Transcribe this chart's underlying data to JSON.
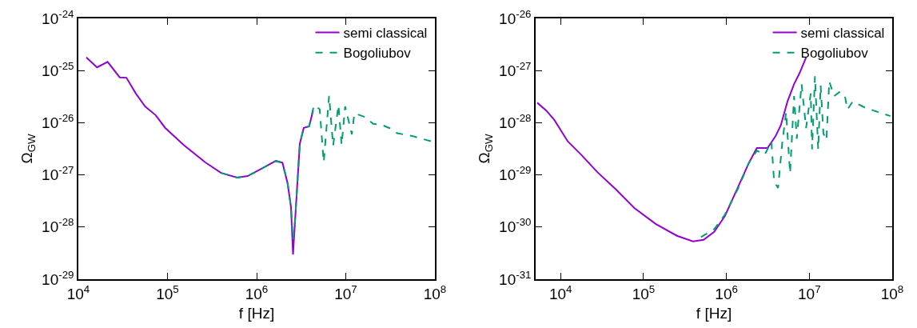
{
  "chart_data": [
    {
      "type": "line",
      "xlabel": "f [Hz]",
      "ylabel": "Ω$_{GW}$",
      "log": "xy",
      "legend": "top right",
      "marker": "none",
      "xlim": [
        10000,
        100000000
      ],
      "ylim": [
        1e-29,
        1e-24
      ],
      "xticks": [
        {
          "value": 10000,
          "label": "10$^{4}$"
        },
        {
          "value": 100000,
          "label": "10$^{5}$"
        },
        {
          "value": 1000000,
          "label": "10$^{6}$"
        },
        {
          "value": 10000000,
          "label": "10$^{7}$"
        },
        {
          "value": 100000000,
          "label": "10$^{8}$"
        }
      ],
      "yticks": [
        {
          "value": 1e-29,
          "label": "10$^{-29}$"
        },
        {
          "value": 1e-28,
          "label": "10$^{-28}$"
        },
        {
          "value": 1e-27,
          "label": "10$^{-27}$"
        },
        {
          "value": 1e-26,
          "label": "10$^{-26}$"
        },
        {
          "value": 1e-25,
          "label": "10$^{-25}$"
        },
        {
          "value": 1e-24,
          "label": "10$^{-24}$"
        }
      ],
      "series": [
        {
          "name": "semi classical",
          "color": "#9400d3",
          "line_style": "solid",
          "x": [
            12300,
            16200,
            21300,
            29100,
            34600,
            44000,
            56100,
            73900,
            94000,
            152000,
            264000,
            399000,
            604000,
            794000,
            1200000,
            1640000,
            1950000,
            2230000,
            2430000,
            2560000,
            2710000,
            3050000,
            3380000,
            3880000,
            4300000
          ],
          "values": [
            1.79e-25,
            1.15e-25,
            1.47e-25,
            7.4e-26,
            7.3e-26,
            3.67e-26,
            2.05e-26,
            1.39e-26,
            8e-27,
            3.74e-27,
            1.75e-27,
            1.09e-27,
            8.9e-28,
            9.5e-28,
            1.38e-27,
            1.85e-27,
            1.71e-27,
            6.8e-28,
            2.38e-28,
            2.96e-29,
            1.49e-28,
            3.96e-27,
            8e-27,
            8.5e-27,
            1.71e-26
          ]
        },
        {
          "name": "Bogoliubov",
          "color": "#009e73",
          "line_style": "dashed",
          "x": [
            399000,
            604000,
            794000,
            1200000,
            1640000,
            1950000,
            2230000,
            2430000,
            2560000,
            2710000,
            3050000,
            3380000,
            3880000,
            4400000,
            5100000,
            5660000,
            6500000,
            7210000,
            8280000,
            8980000,
            9840000,
            11700000,
            12500000,
            16500000,
            20300000,
            24900000,
            32800000,
            37700000,
            57000000,
            100000000
          ],
          "values": [
            1.09e-27,
            8.9e-28,
            9.5e-28,
            1.38e-27,
            1.85e-27,
            1.71e-27,
            6.8e-28,
            2.38e-28,
            5.8e-29,
            1.49e-28,
            3.96e-27,
            8e-27,
            8.5e-27,
            2.17e-26,
            1.82e-26,
            1.75e-27,
            3.27e-26,
            3.61e-27,
            2.17e-26,
            3.74e-27,
            2.05e-26,
            5.98e-27,
            1.52e-26,
            1.28e-26,
            9.5e-27,
            9.2e-27,
            7.55e-27,
            6.3e-27,
            5.5e-27,
            4.2e-27
          ]
        }
      ]
    },
    {
      "type": "line",
      "xlabel": "f [Hz]",
      "ylabel": "Ω$_{GW}$",
      "log": "xy",
      "legend": "top right",
      "marker": "none",
      "xlim": [
        5000,
        100000000
      ],
      "ylim": [
        1e-31,
        1e-26
      ],
      "xticks": [
        {
          "value": 10000,
          "label": "10$^{4}$"
        },
        {
          "value": 100000,
          "label": "10$^{5}$"
        },
        {
          "value": 1000000,
          "label": "10$^{6}$"
        },
        {
          "value": 10000000,
          "label": "10$^{7}$"
        },
        {
          "value": 100000000,
          "label": "10$^{8}$"
        }
      ],
      "yticks": [
        {
          "value": 1e-31,
          "label": "10$^{-31}$"
        },
        {
          "value": 1e-30,
          "label": "10$^{-30}$"
        },
        {
          "value": 1e-29,
          "label": "10$^{-29}$"
        },
        {
          "value": 1e-28,
          "label": "10$^{-28}$"
        },
        {
          "value": 1e-27,
          "label": "10$^{-27}$"
        },
        {
          "value": 1e-26,
          "label": "10$^{-26}$"
        }
      ],
      "series": [
        {
          "name": "semi classical",
          "color": "#9400d3",
          "line_style": "solid",
          "x": [
            5220,
            6750,
            8430,
            12200,
            17700,
            27600,
            46200,
            77500,
            140000,
            253000,
            395000,
            530000,
            712000,
            960000,
            1390000,
            1870000,
            2330000,
            3130000,
            3910000,
            4530000,
            5450000,
            6550000,
            7600000,
            9140000
          ],
          "values": [
            2.42e-28,
            1.7e-28,
            1.12e-28,
            4.39e-29,
            2.44e-29,
            1.14e-29,
            5.3e-30,
            2.32e-30,
            1.15e-30,
            6.8e-31,
            5.3e-31,
            5.7e-31,
            8.1e-31,
            1.63e-30,
            6e-30,
            1.71e-29,
            3.27e-29,
            3.27e-29,
            5.5e-29,
            8.9e-29,
            2.55e-28,
            5.5e-28,
            8.8e-28,
            1.78e-27
          ]
        },
        {
          "name": "Bogoliubov",
          "color": "#009e73",
          "line_style": "dashed",
          "x": [
            493000,
            712000,
            960000,
            1390000,
            1870000,
            2330000,
            2900000,
            3490000,
            3760000,
            4200000,
            4700000,
            5250000,
            5860000,
            6550000,
            7060000,
            8070000,
            9140000,
            10400000,
            10800000,
            11700000,
            12800000,
            13700000,
            14800000,
            16100000,
            17400000,
            19900000,
            23000000,
            26700000,
            28800000,
            33400000,
            44800000,
            60300000,
            95000000
          ],
          "values": [
            6.4e-31,
            9.1e-31,
            1.73e-30,
            5.6e-30,
            1.71e-29,
            2.91e-29,
            2.44e-29,
            4.39e-29,
            7.5e-30,
            5.6e-30,
            3.9e-29,
            1.6e-28,
            1.07e-29,
            3.24e-28,
            4.94e-29,
            5.5e-28,
            7.9e-29,
            3.64e-28,
            3.08e-29,
            7.8e-28,
            3.08e-29,
            5.2e-28,
            6.2e-29,
            4.66e-29,
            6.2e-28,
            3.24e-28,
            3.86e-28,
            3.44e-28,
            1.8e-28,
            2.55e-28,
            2.02e-28,
            1.7e-28,
            1.34e-28
          ]
        }
      ]
    }
  ]
}
